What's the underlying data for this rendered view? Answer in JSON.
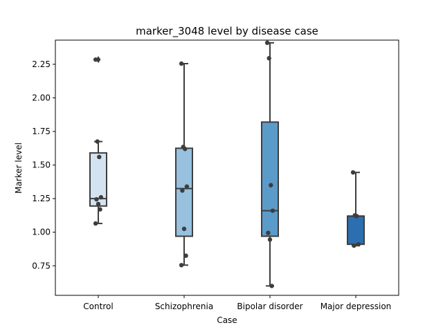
{
  "chart_data": {
    "type": "box",
    "title": "marker_3048 level by disease case",
    "xlabel": "Case",
    "ylabel": "Marker level",
    "categories": [
      "Control",
      "Schizophrenia",
      "Bipolar disorder",
      "Major depression"
    ],
    "ylim": [
      0.53,
      2.43
    ],
    "yticks": [
      0.75,
      1.0,
      1.25,
      1.5,
      1.75,
      2.0,
      2.25
    ],
    "ytick_labels": [
      "0.75",
      "1.00",
      "1.25",
      "1.50",
      "1.75",
      "2.00",
      "2.25"
    ],
    "boxes": [
      {
        "category": "Control",
        "color": "#d4e3f1",
        "whisker_low": 1.065,
        "q1": 1.195,
        "median": 1.25,
        "q3": 1.59,
        "whisker_high": 1.675,
        "outliers": [
          2.285
        ]
      },
      {
        "category": "Schizophrenia",
        "color": "#97c1df",
        "whisker_low": 0.755,
        "q1": 0.97,
        "median": 1.325,
        "q3": 1.625,
        "whisker_high": 2.255,
        "outliers": []
      },
      {
        "category": "Bipolar disorder",
        "color": "#5b9bc9",
        "whisker_low": 0.6,
        "q1": 0.97,
        "median": 1.16,
        "q3": 1.82,
        "whisker_high": 2.41,
        "outliers": []
      },
      {
        "category": "Major depression",
        "color": "#2b6fb0",
        "whisker_low": 0.9,
        "q1": 0.91,
        "median": 1.12,
        "q3": 1.12,
        "whisker_high": 1.445,
        "outliers": []
      }
    ],
    "points": [
      {
        "category": "Control",
        "values": [
          2.285,
          1.675,
          1.56,
          1.26,
          1.245,
          1.21,
          1.17,
          1.065
        ]
      },
      {
        "category": "Schizophrenia",
        "values": [
          2.255,
          1.635,
          1.62,
          1.34,
          1.31,
          1.025,
          0.825,
          0.755
        ]
      },
      {
        "category": "Bipolar disorder",
        "values": [
          2.41,
          2.295,
          1.35,
          1.16,
          0.995,
          0.945,
          0.6
        ]
      },
      {
        "category": "Major depression",
        "values": [
          1.445,
          1.125,
          1.12,
          0.91,
          0.9
        ]
      }
    ]
  }
}
